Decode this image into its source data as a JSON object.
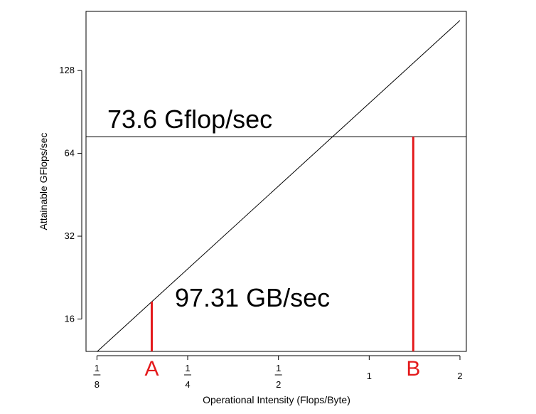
{
  "chart_data": {
    "type": "line",
    "scale": "log2",
    "xlabel": "Operational Intensity (Flops/Byte)",
    "ylabel": "Attainable GFlops/sec",
    "xlim": [
      0.115,
      2.1
    ],
    "ylim": [
      12.2,
      210
    ],
    "x_ticks": [
      {
        "value": 0.125,
        "num": "1",
        "den": "8"
      },
      {
        "value": 0.25,
        "num": "1",
        "den": "4"
      },
      {
        "value": 0.5,
        "num": "1",
        "den": "2"
      },
      {
        "value": 1,
        "label": "1"
      },
      {
        "value": 2,
        "label": "2"
      }
    ],
    "y_ticks": [
      {
        "value": 16,
        "label": "16"
      },
      {
        "value": 32,
        "label": "32"
      },
      {
        "value": 64,
        "label": "64"
      },
      {
        "value": 128,
        "label": "128"
      }
    ],
    "series": [
      {
        "x": [
          0.125,
          2.0
        ],
        "y": [
          12.16,
          194.6
        ]
      }
    ],
    "peak_line": {
      "value": 73.6,
      "label": "73.6 Gflop/sec",
      "color": "#000000"
    },
    "bandwidth_label": "97.31 GB/sec",
    "markers": [
      {
        "label": "A",
        "x": 0.19,
        "y": 18.5,
        "color": "#e41a1c"
      },
      {
        "label": "B",
        "x": 1.4,
        "y": 73.6,
        "color": "#e41a1c"
      }
    ]
  }
}
